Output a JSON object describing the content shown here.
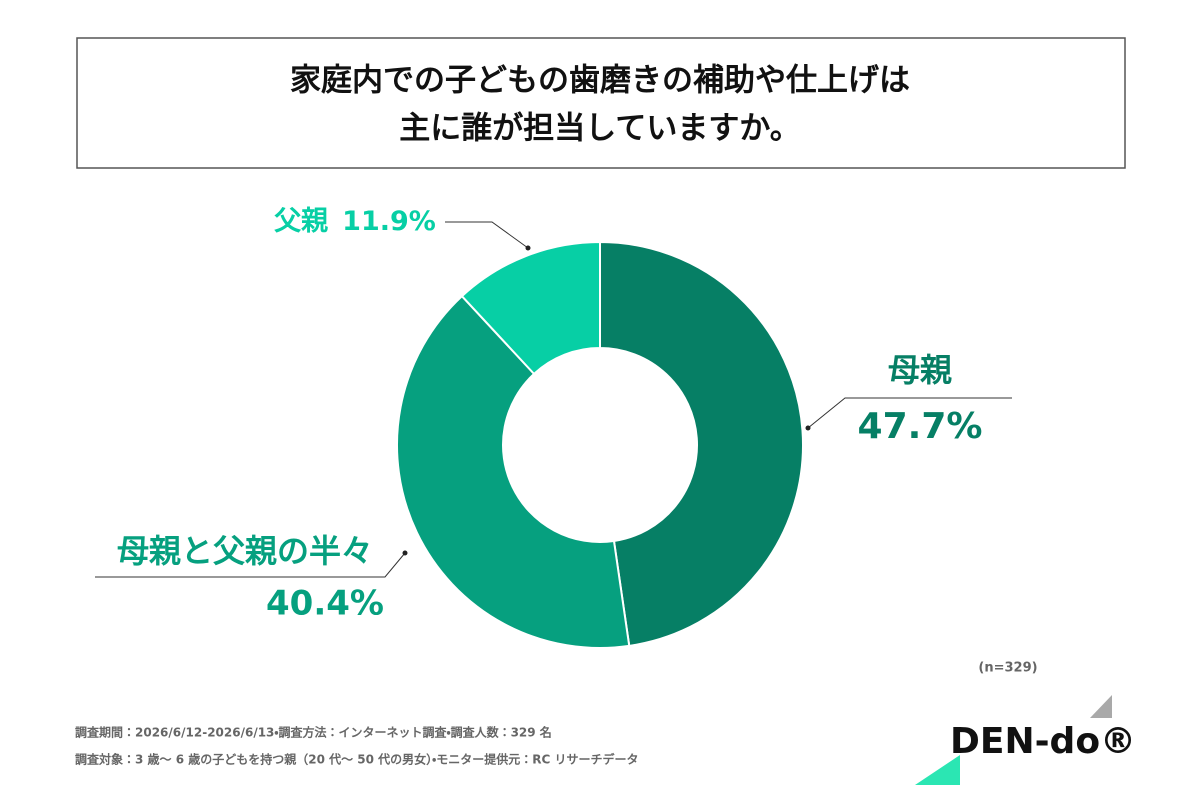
{
  "chart_data": {
    "type": "donut",
    "title": [
      "家庭内での子どもの歯磨きの補助や仕上げは",
      "主に誰が担当していますか。"
    ],
    "categories": [
      "母親",
      "母親と父親の半々",
      "父親"
    ],
    "values": [
      47.7,
      40.4,
      11.9
    ],
    "value_labels": [
      "47.7%",
      "40.4%",
      "11.9%"
    ],
    "colors": [
      "#067f65",
      "#06a07f",
      "#07cfa5"
    ],
    "note": "(n=329)",
    "footnotes": [
      "調査期間：2026/6/12-2026/6/13・調査方法：インターネット調査・調査人数：329 名",
      "調査対象：3 歳～ 6 歳の子どもを持つ親（20 代～ 50 代の男女）・モニター提供元：RC リサーチデータ"
    ]
  },
  "logo": "DEN-do®"
}
